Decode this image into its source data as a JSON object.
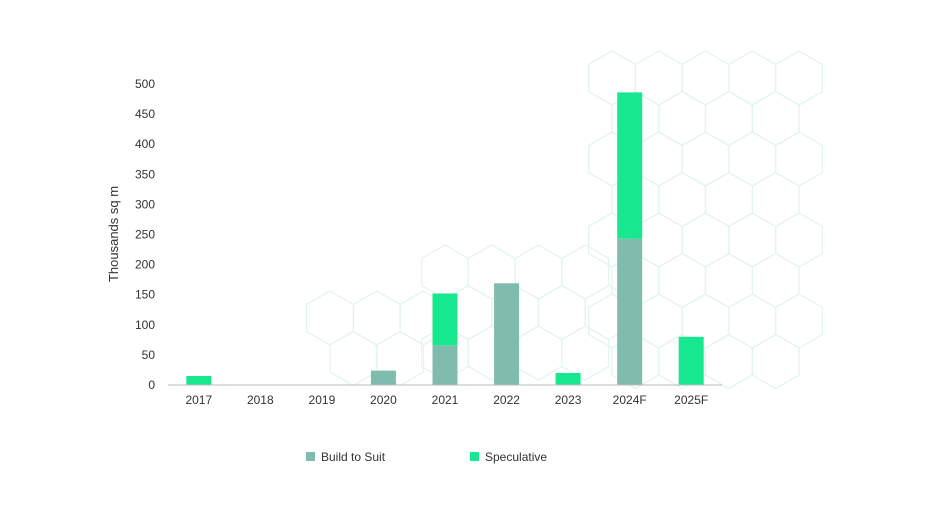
{
  "chart_data": {
    "type": "bar",
    "stacked": true,
    "categories": [
      "2017",
      "2018",
      "2019",
      "2020",
      "2021",
      "2022",
      "2023",
      "2024F",
      "2025F"
    ],
    "series": [
      {
        "name": "Build to Suit",
        "color": "#80bcae",
        "values": [
          0,
          0,
          0,
          24,
          66,
          169,
          0,
          243,
          0
        ]
      },
      {
        "name": "Speculative",
        "color": "#17e88f",
        "values": [
          15,
          0,
          0,
          0,
          86,
          0,
          20,
          243,
          80
        ]
      }
    ],
    "title": "",
    "xlabel": "",
    "ylabel": "Thousands sq m",
    "ylim": [
      0,
      500
    ],
    "yticks": [
      "0",
      "50",
      "100",
      "150",
      "200",
      "250",
      "300",
      "350",
      "400",
      "450",
      "500"
    ],
    "grid": false,
    "legend": "bottom"
  },
  "colors": {
    "axis": "#bbbbbb",
    "hex_pattern": "#e3f3ee"
  }
}
